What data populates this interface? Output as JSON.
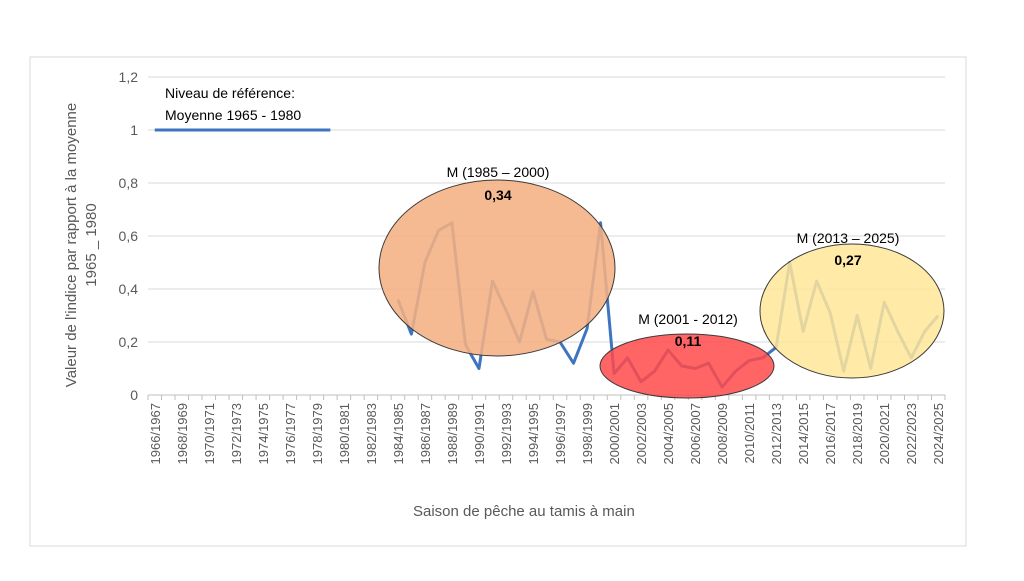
{
  "chart_data": {
    "type": "line",
    "ylabel": [
      "Valeur de l'indice par rapport à la moyenne",
      "1965 _ 1980"
    ],
    "xlabel": "Saison de pêche au tamis à main",
    "categories": [
      "1966/1967",
      null,
      "1968/1969",
      null,
      "1970/1971",
      null,
      "1972/1973",
      null,
      "1974/1975",
      null,
      "1976/1977",
      null,
      "1978/1979",
      null,
      "1980/1981",
      null,
      "1982/1983",
      null,
      "1984/1985",
      null,
      "1986/1987",
      null,
      "1988/1989",
      null,
      "1990/1991",
      null,
      "1992/1993",
      null,
      "1994/1995",
      null,
      "1996/1997",
      null,
      "1998/1999",
      null,
      "2000/2001",
      null,
      "2002/2003",
      null,
      "2004/2005",
      null,
      "2006/2007",
      null,
      "2008/2009",
      null,
      "2010/2011",
      null,
      "2012/2013",
      null,
      "2014/2015",
      null,
      "2016/2017",
      null,
      "2018/2019",
      null,
      "2020/2021",
      null,
      "2022/2023",
      null,
      "2024/2025"
    ],
    "series": [
      {
        "color": "#3f74c0",
        "values": [
          1,
          1,
          1,
          1,
          1,
          1,
          1,
          1,
          1,
          1,
          1,
          1,
          1,
          1,
          null,
          null,
          null,
          null,
          0.36,
          0.23,
          0.5,
          0.62,
          0.65,
          0.19,
          0.1,
          0.43,
          0.32,
          0.2,
          0.39,
          0.21,
          0.2,
          0.12,
          0.25,
          0.65,
          0.08,
          0.14,
          0.05,
          0.09,
          0.17,
          0.11,
          0.1,
          0.12,
          0.03,
          0.09,
          0.13,
          0.14,
          0.18,
          0.5,
          0.24,
          0.43,
          0.31,
          0.09,
          0.3,
          0.1,
          0.35,
          0.24,
          0.14,
          0.24,
          0.3
        ]
      }
    ],
    "ylim": [
      0,
      1.2
    ],
    "yticks": [
      0,
      {
        "value": 0.2,
        "label": "0,2"
      },
      {
        "value": 0.4,
        "label": "0,4"
      },
      {
        "value": 0.6,
        "label": "0,6"
      },
      {
        "value": 0.8,
        "label": "0,8"
      },
      1,
      {
        "value": 1.2,
        "label": "1,2"
      }
    ],
    "grid": true,
    "annotations": {
      "reference": [
        "Niveau de référence:",
        "Moyenne 1965 - 1980"
      ],
      "period1": {
        "label": "M (1985 – 2000)",
        "mean": "0,34"
      },
      "period2": {
        "label": "M (2001 - 2012)",
        "mean": "0,11"
      },
      "period3": {
        "label": "M (2013 – 2025)",
        "mean": "0,27"
      }
    }
  }
}
